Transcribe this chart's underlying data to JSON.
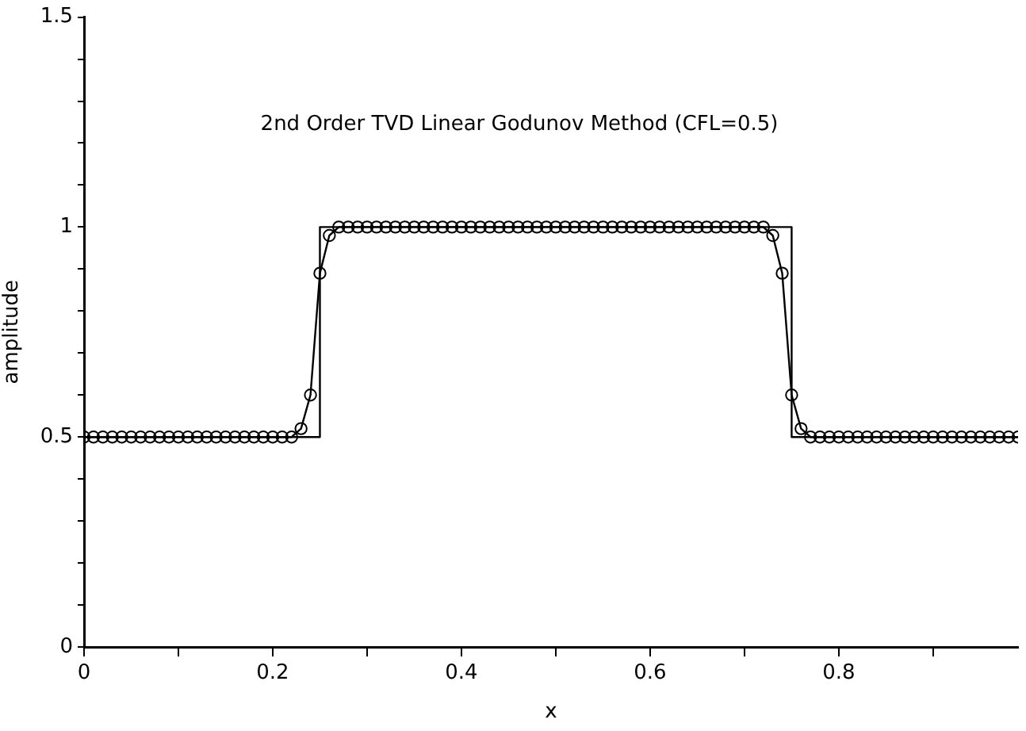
{
  "chart_data": {
    "type": "line",
    "title": "2nd Order TVD Linear Godunov Method (CFL=0.5)",
    "xlabel": "x",
    "ylabel": "amplitude",
    "xlim": [
      0,
      0.99
    ],
    "xticks": [
      0,
      {
        "value": 0.1,
        "label": null
      },
      0.2,
      {
        "value": 0.3,
        "label": null
      },
      0.4,
      {
        "value": 0.5,
        "label": null
      },
      0.6,
      {
        "value": 0.7,
        "label": null
      },
      0.8,
      {
        "value": 0.9,
        "label": null
      }
    ],
    "ylim": [
      0,
      1.5
    ],
    "yticks": [
      0,
      {
        "value": 0.1,
        "label": null
      },
      {
        "value": 0.2,
        "label": null
      },
      {
        "value": 0.3,
        "label": null
      },
      {
        "value": 0.4,
        "label": null
      },
      0.5,
      {
        "value": 0.6,
        "label": null
      },
      {
        "value": 0.7,
        "label": null
      },
      {
        "value": 0.8,
        "label": null
      },
      {
        "value": 0.9,
        "label": null
      },
      1,
      {
        "value": 1.1,
        "label": null
      },
      {
        "value": 1.2,
        "label": null
      },
      {
        "value": 1.3,
        "label": null
      },
      {
        "value": 1.4,
        "label": null
      },
      1.5
    ],
    "grid": false,
    "legend": false,
    "series": [
      {
        "color": "#000000",
        "marker": "none",
        "x": [
          0,
          0.25,
          0.25,
          0.75,
          0.75,
          0.99
        ],
        "values": [
          0.5,
          0.5,
          1,
          1,
          0.5,
          0.5
        ]
      },
      {
        "color": "#000000",
        "marker": "circle",
        "x": [
          0,
          0.01,
          0.02,
          0.03,
          0.04,
          0.05,
          0.06,
          0.07,
          0.08,
          0.09,
          0.1,
          0.11,
          0.12,
          0.13,
          0.14,
          0.15,
          0.16,
          0.17,
          0.18,
          0.19,
          0.2,
          0.21,
          0.22,
          0.23,
          0.24,
          0.25,
          0.26,
          0.27,
          0.28,
          0.29,
          0.3,
          0.31,
          0.32,
          0.33,
          0.34,
          0.35,
          0.36,
          0.37,
          0.38,
          0.39,
          0.4,
          0.41,
          0.42,
          0.43,
          0.44,
          0.45,
          0.46,
          0.47,
          0.48,
          0.49,
          0.5,
          0.51,
          0.52,
          0.53,
          0.54,
          0.55,
          0.56,
          0.57,
          0.58,
          0.59,
          0.6,
          0.61,
          0.62,
          0.63,
          0.64,
          0.65,
          0.66,
          0.67,
          0.68,
          0.69,
          0.7,
          0.71,
          0.72,
          0.73,
          0.74,
          0.75,
          0.76,
          0.77,
          0.78,
          0.79,
          0.8,
          0.81,
          0.82,
          0.83,
          0.84,
          0.85,
          0.86,
          0.87,
          0.88,
          0.89,
          0.9,
          0.91,
          0.92,
          0.93,
          0.94,
          0.95,
          0.96,
          0.97,
          0.98,
          0.99
        ],
        "values": [
          0.5,
          0.5,
          0.5,
          0.5,
          0.5,
          0.5,
          0.5,
          0.5,
          0.5,
          0.5,
          0.5,
          0.5,
          0.5,
          0.5,
          0.5,
          0.5,
          0.5,
          0.5,
          0.5,
          0.5,
          0.5,
          0.5,
          0.5,
          0.52,
          0.6,
          0.89,
          0.98,
          1,
          1,
          1,
          1,
          1,
          1,
          1,
          1,
          1,
          1,
          1,
          1,
          1,
          1,
          1,
          1,
          1,
          1,
          1,
          1,
          1,
          1,
          1,
          1,
          1,
          1,
          1,
          1,
          1,
          1,
          1,
          1,
          1,
          1,
          1,
          1,
          1,
          1,
          1,
          1,
          1,
          1,
          1,
          1,
          1,
          1,
          0.98,
          0.89,
          0.6,
          0.52,
          0.5,
          0.5,
          0.5,
          0.5,
          0.5,
          0.5,
          0.5,
          0.5,
          0.5,
          0.5,
          0.5,
          0.5,
          0.5,
          0.5,
          0.5,
          0.5,
          0.5,
          0.5,
          0.5,
          0.5,
          0.5,
          0.5,
          0.5
        ]
      }
    ]
  }
}
